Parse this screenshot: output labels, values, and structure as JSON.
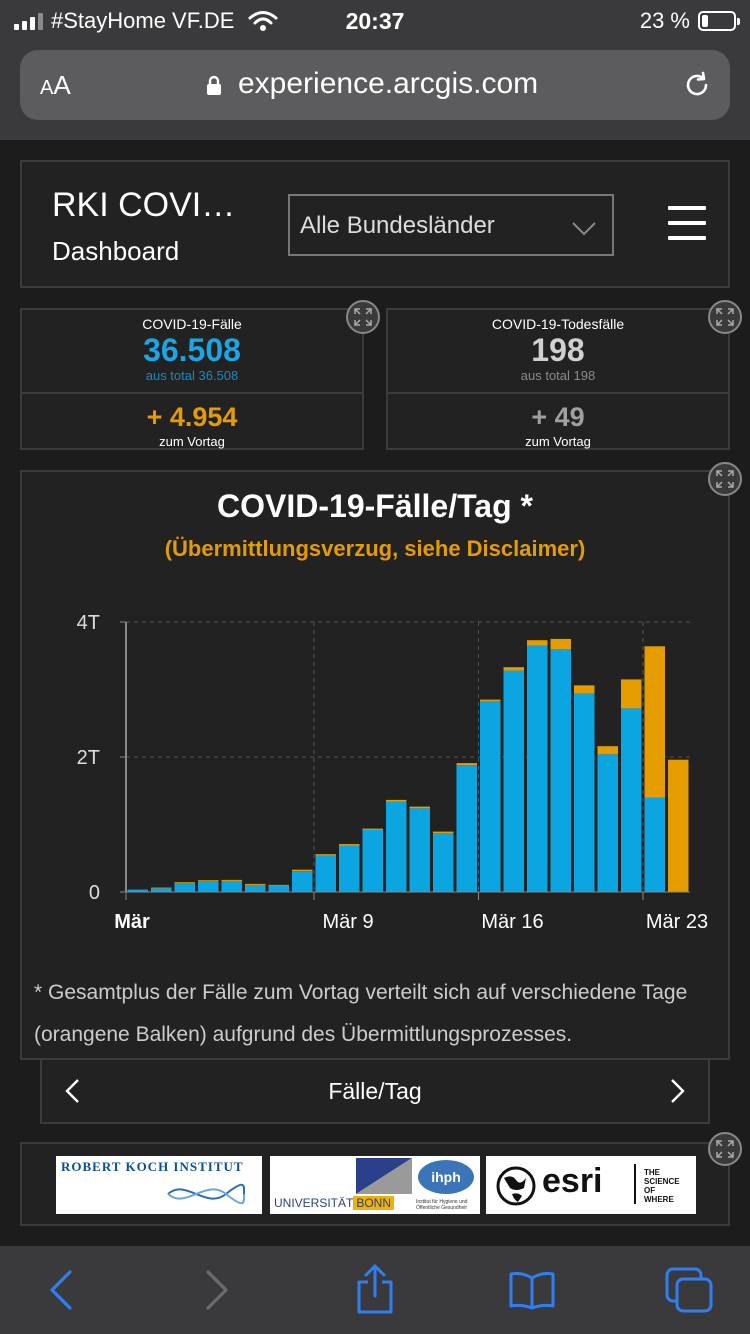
{
  "status_bar": {
    "carrier": "#StayHome VF.DE",
    "time": "20:37",
    "battery": "23 %"
  },
  "browser": {
    "text_size_label": "AA",
    "url": "experience.arcgis.com"
  },
  "dashboard": {
    "title": "RKI COVI…",
    "subtitle": "Dashboard",
    "region_select": {
      "value": "Alle Bundesländer"
    }
  },
  "kpi_cases": {
    "label": "COVID-19-Fälle",
    "value": "36.508",
    "total": "aus total 36.508",
    "delta": "+ 4.954",
    "delta_label": "zum Vortag",
    "value_color": "#1aa6e4",
    "delta_color": "#e59c00"
  },
  "kpi_deaths": {
    "label": "COVID-19-Todesfälle",
    "value": "198",
    "total": "aus total 198",
    "delta": "+ 49",
    "delta_label": "zum Vortag",
    "value_color": "#d0d0d0",
    "delta_color": "#a0a0a0"
  },
  "chart_panel": {
    "title": "COVID-19-Fälle/Tag *",
    "subtitle": "(Übermittlungsverzug, siehe Disclaimer)",
    "footnote": "* Gesamtplus der Fälle zum Vortag verteilt sich auf verschiedene Tage (orangene Balken) aufgrund des Übermittlungsprozesses.",
    "nav_label": "Fälle/Tag"
  },
  "chart_data": {
    "type": "bar",
    "stacked": true,
    "y_ticks": [
      "0",
      "2T",
      "4T"
    ],
    "ylim": [
      0,
      4000
    ],
    "x_tick_labels": [
      {
        "label": "Mär",
        "index": 0,
        "bold": true
      },
      {
        "label": "Mär 9",
        "index": 8
      },
      {
        "label": "Mär 16",
        "index": 15
      },
      {
        "label": "Mär 23",
        "index": 22
      }
    ],
    "grid": true,
    "series": [
      {
        "color": "#0ba6e1",
        "values": [
          30,
          55,
          130,
          160,
          165,
          105,
          95,
          310,
          540,
          690,
          920,
          1340,
          1240,
          870,
          1880,
          2820,
          3280,
          3650,
          3600,
          2940,
          2040,
          2720,
          1400,
          0
        ]
      },
      {
        "color": "#e59c00",
        "values": [
          5,
          10,
          15,
          15,
          15,
          15,
          10,
          20,
          20,
          20,
          20,
          25,
          25,
          25,
          30,
          30,
          50,
          80,
          150,
          120,
          120,
          430,
          2240,
          1960
        ]
      }
    ]
  },
  "logos": {
    "rki": "ROBERT KOCH INSTITUT",
    "bonn_uni": "UNIVERSITÄT",
    "bonn_city": "BONN",
    "ihph": "ihph",
    "ihph_sub": "Institut für Hygiene und Öffentliche Gesundheit",
    "esri": "esri",
    "esri_tag": [
      "THE",
      "SCIENCE",
      "OF",
      "WHERE"
    ]
  },
  "icons": {
    "expand": "expand-icon",
    "menu": "hamburger-menu-icon",
    "back": "back-arrow-icon",
    "forward": "forward-arrow-icon",
    "share": "share-icon",
    "bookmarks": "bookmarks-icon",
    "tabs": "tabs-icon"
  }
}
